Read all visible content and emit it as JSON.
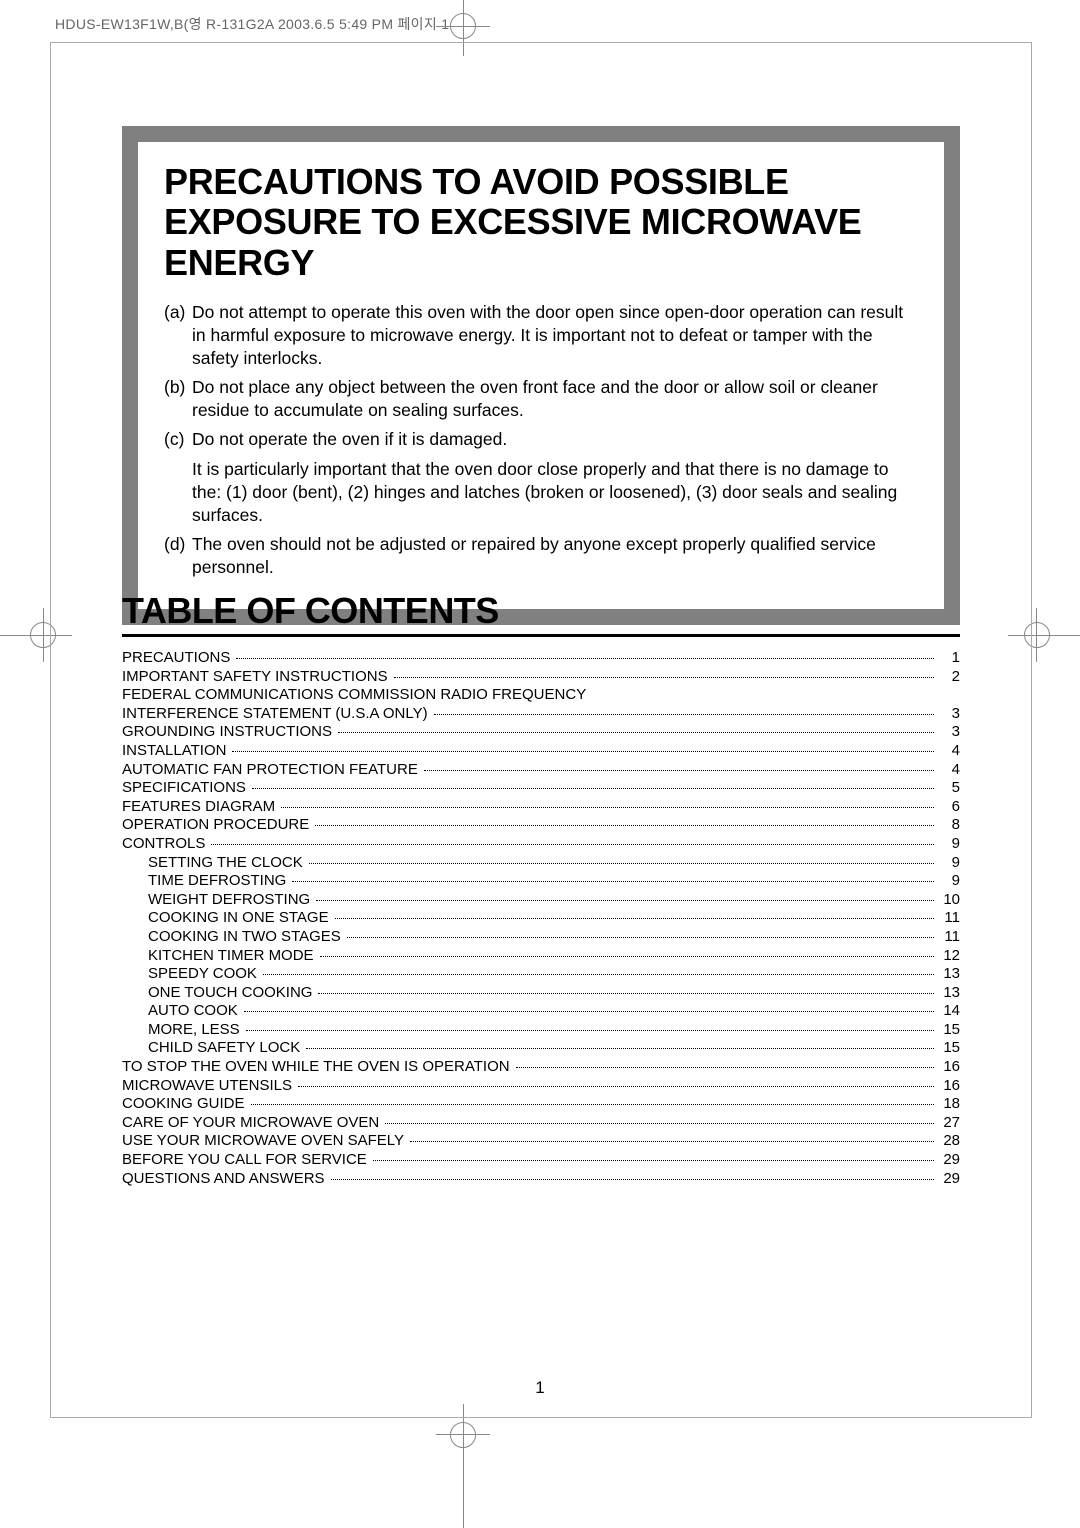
{
  "header": "HDUS-EW13F1W,B(영 R-131G2A  2003.6.5 5:49 PM  페이지 1",
  "precautions": {
    "title": "PRECAUTIONS TO AVOID POSSIBLE EXPOSURE TO EXCESSIVE MICROWAVE ENERGY",
    "items": [
      {
        "marker": "(a)",
        "text": "Do not attempt to operate this oven with the door open since open-door operation can result in harmful exposure to microwave energy. It is important not to defeat or tamper with the safety interlocks."
      },
      {
        "marker": "(b)",
        "text": "Do not place any object between the oven front face and the door or allow soil or cleaner residue to accumulate on sealing surfaces."
      },
      {
        "marker": "(c)",
        "text": "Do not operate the oven if it is damaged.",
        "sub": "It is particularly important that the oven door close properly and that there is no damage to the: (1) door (bent), (2) hinges and latches (broken or loosened), (3) door seals and sealing surfaces."
      },
      {
        "marker": "(d)",
        "text": "The oven should not be adjusted or repaired by anyone except properly qualified service personnel."
      }
    ]
  },
  "toc": {
    "title": "TABLE OF CONTENTS",
    "rows": [
      {
        "label": "PRECAUTIONS",
        "page": "1",
        "indent": false
      },
      {
        "label": "IMPORTANT SAFETY INSTRUCTIONS",
        "page": "2",
        "indent": false
      },
      {
        "label": "FEDERAL COMMUNICATIONS COMMISSION RADIO FREQUENCY",
        "page": "",
        "indent": false,
        "nopage": true
      },
      {
        "label": "INTERFERENCE STATEMENT (U.S.A ONLY)",
        "page": "3",
        "indent": false
      },
      {
        "label": "GROUNDING INSTRUCTIONS",
        "page": "3",
        "indent": false
      },
      {
        "label": "INSTALLATION",
        "page": "4",
        "indent": false
      },
      {
        "label": "AUTOMATIC FAN PROTECTION FEATURE",
        "page": "4",
        "indent": false
      },
      {
        "label": "SPECIFICATIONS",
        "page": "5",
        "indent": false
      },
      {
        "label": "FEATURES DIAGRAM",
        "page": "6",
        "indent": false
      },
      {
        "label": "OPERATION PROCEDURE",
        "page": "8",
        "indent": false
      },
      {
        "label": "CONTROLS",
        "page": "9",
        "indent": false
      },
      {
        "label": "SETTING THE CLOCK",
        "page": "9",
        "indent": true
      },
      {
        "label": "TIME DEFROSTING",
        "page": "9",
        "indent": true
      },
      {
        "label": "WEIGHT DEFROSTING",
        "page": "10",
        "indent": true
      },
      {
        "label": "COOKING IN ONE STAGE",
        "page": "11",
        "indent": true
      },
      {
        "label": "COOKING IN TWO STAGES",
        "page": "11",
        "indent": true
      },
      {
        "label": "KITCHEN TIMER MODE",
        "page": "12",
        "indent": true
      },
      {
        "label": "SPEEDY COOK",
        "page": "13",
        "indent": true
      },
      {
        "label": "ONE TOUCH COOKING",
        "page": "13",
        "indent": true
      },
      {
        "label": "AUTO COOK",
        "page": "14",
        "indent": true
      },
      {
        "label": "MORE, LESS",
        "page": "15",
        "indent": true
      },
      {
        "label": "CHILD SAFETY LOCK",
        "page": "15",
        "indent": true
      },
      {
        "label": "TO STOP THE OVEN WHILE THE OVEN IS OPERATION",
        "page": "16",
        "indent": false
      },
      {
        "label": "MICROWAVE UTENSILS",
        "page": "16",
        "indent": false
      },
      {
        "label": "COOKING GUIDE",
        "page": "18",
        "indent": false
      },
      {
        "label": "CARE OF YOUR MICROWAVE OVEN",
        "page": "27",
        "indent": false
      },
      {
        "label": "USE YOUR MICROWAVE OVEN SAFELY",
        "page": "28",
        "indent": false
      },
      {
        "label": "BEFORE YOU CALL FOR SERVICE",
        "page": "29",
        "indent": false
      },
      {
        "label": "QUESTIONS AND ANSWERS",
        "page": "29",
        "indent": false
      }
    ]
  },
  "page_number": "1"
}
